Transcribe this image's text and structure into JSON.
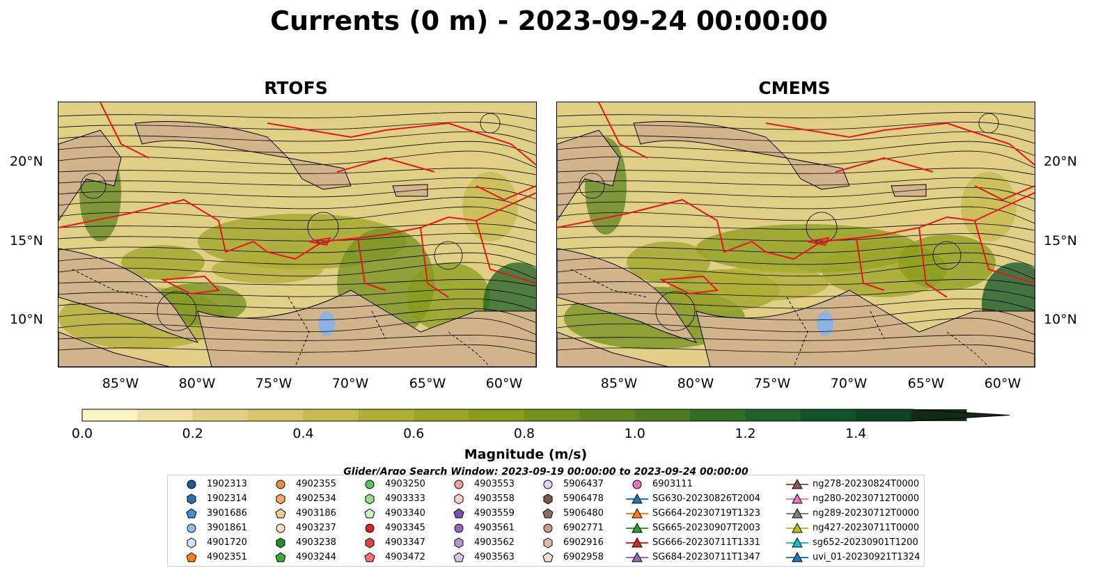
{
  "title": "Currents (0 m) - 2023-09-24 00:00:00",
  "panels": [
    {
      "title": "RTOFS"
    },
    {
      "title": "CMEMS"
    }
  ],
  "lon_ticks": [
    "85°W",
    "80°W",
    "75°W",
    "70°W",
    "65°W",
    "60°W"
  ],
  "lat_ticks": [
    "20°N",
    "15°N",
    "10°N"
  ],
  "colorbar": {
    "label": "Magnitude (m/s)",
    "ticks": [
      "0.0",
      "0.2",
      "0.4",
      "0.6",
      "0.8",
      "1.0",
      "1.2",
      "1.4"
    ],
    "range": [
      0,
      1.5
    ],
    "colors": [
      "#fbf3c2",
      "#efe0a2",
      "#e2cf86",
      "#d9c567",
      "#c6bb4e",
      "#b1ae36",
      "#9ea428",
      "#8a9c1a",
      "#74901d",
      "#5f8420",
      "#4b7a24",
      "#356d25",
      "#1f6127",
      "#0f5328",
      "#0f4222",
      "#12331b",
      "#142a17"
    ]
  },
  "legend": {
    "title": "Glider/Argo Search Window: 2023-09-19 00:00:00 to 2023-09-24 00:00:00",
    "items": [
      {
        "label": "1902313",
        "marker": "circle",
        "color": "#1f5c99"
      },
      {
        "label": "1902314",
        "marker": "hexagon",
        "color": "#2a6fb0"
      },
      {
        "label": "3901686",
        "marker": "pentagon",
        "color": "#3f8fd2"
      },
      {
        "label": "3901861",
        "marker": "circle",
        "color": "#8fbfe8"
      },
      {
        "label": "4901720",
        "marker": "hexagon",
        "color": "#cfe3f5"
      },
      {
        "label": "4902351",
        "marker": "pentagon",
        "color": "#ff7f0e"
      },
      {
        "label": "4902355",
        "marker": "circle",
        "color": "#f08d3c"
      },
      {
        "label": "4902534",
        "marker": "hexagon",
        "color": "#f7a86a"
      },
      {
        "label": "4903186",
        "marker": "pentagon",
        "color": "#f8c897"
      },
      {
        "label": "4903237",
        "marker": "circle",
        "color": "#fde3c2"
      },
      {
        "label": "4903238",
        "marker": "hexagon",
        "color": "#2b8a2b"
      },
      {
        "label": "4903244",
        "marker": "pentagon",
        "color": "#3aa83a"
      },
      {
        "label": "4903250",
        "marker": "circle",
        "color": "#5bc15b"
      },
      {
        "label": "4903333",
        "marker": "hexagon",
        "color": "#98df8a"
      },
      {
        "label": "4903340",
        "marker": "pentagon",
        "color": "#cdf1c4"
      },
      {
        "label": "4903345",
        "marker": "circle",
        "color": "#d62728"
      },
      {
        "label": "4903347",
        "marker": "hexagon",
        "color": "#e04545"
      },
      {
        "label": "4903472",
        "marker": "pentagon",
        "color": "#f07474"
      },
      {
        "label": "4903553",
        "marker": "circle",
        "color": "#f4a0a0"
      },
      {
        "label": "4903558",
        "marker": "hexagon",
        "color": "#fbd0d0"
      },
      {
        "label": "4903559",
        "marker": "pentagon",
        "color": "#7d4fb5"
      },
      {
        "label": "4903561",
        "marker": "circle",
        "color": "#9467bd"
      },
      {
        "label": "4903562",
        "marker": "hexagon",
        "color": "#b394d6"
      },
      {
        "label": "4903563",
        "marker": "pentagon",
        "color": "#d6c3ea"
      },
      {
        "label": "5906437",
        "marker": "circle",
        "color": "#e5d5f5"
      },
      {
        "label": "5906478",
        "marker": "hexagon",
        "color": "#7a5547"
      },
      {
        "label": "5906480",
        "marker": "pentagon",
        "color": "#8c6d5f"
      },
      {
        "label": "6902771",
        "marker": "circle",
        "color": "#c49c8e"
      },
      {
        "label": "6902916",
        "marker": "hexagon",
        "color": "#e3b8a8"
      },
      {
        "label": "6902958",
        "marker": "pentagon",
        "color": "#f6dcd2"
      },
      {
        "label": "6903111",
        "marker": "circle",
        "color": "#e377c2"
      },
      {
        "label": "SG630-20230826T2004",
        "marker": "triangle",
        "color": "#1f77b4"
      },
      {
        "label": "SG664-20230719T1323",
        "marker": "triangle",
        "color": "#ff7f0e"
      },
      {
        "label": "SG665-20230907T2003",
        "marker": "triangle",
        "color": "#2ca02c"
      },
      {
        "label": "SG666-20230711T1331",
        "marker": "triangle",
        "color": "#d62728"
      },
      {
        "label": "SG684-20230711T1347",
        "marker": "triangle",
        "color": "#9467bd"
      },
      {
        "label": "ng278-20230824T0000",
        "marker": "triangle",
        "color": "#8c564b"
      },
      {
        "label": "ng280-20230712T0000",
        "marker": "triangle",
        "color": "#e377c2"
      },
      {
        "label": "ng289-20230712T0000",
        "marker": "triangle",
        "color": "#7f7f7f"
      },
      {
        "label": "ng427-20230711T0000",
        "marker": "triangle",
        "color": "#bcbd22"
      },
      {
        "label": "sg652-20230901T1200",
        "marker": "triangle",
        "color": "#17becf"
      },
      {
        "label": "uvi_01-20230921T1324",
        "marker": "triangle",
        "color": "#1f77b4"
      }
    ]
  }
}
